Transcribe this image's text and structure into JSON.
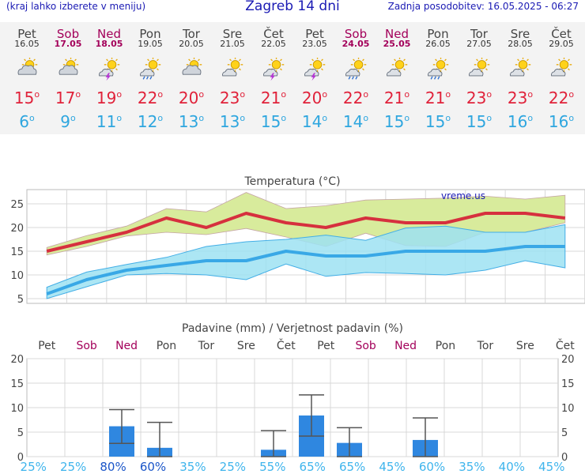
{
  "header": {
    "menu_hint": "(kraj lahko izberete v meniju)",
    "title": "Zagreb 14 dni",
    "updated": "Zadnja posodobitev: 16.05.2025 - 06:27"
  },
  "days": [
    {
      "name": "Pet",
      "date": "16.05",
      "weekend": false,
      "icon": "cloudy-sun-icon",
      "max": "15",
      "min": "6"
    },
    {
      "name": "Sob",
      "date": "17.05",
      "weekend": true,
      "icon": "cloudy-sun-icon",
      "max": "17",
      "min": "9"
    },
    {
      "name": "Ned",
      "date": "18.05",
      "weekend": true,
      "icon": "sun-cloud-storm-icon",
      "max": "19",
      "min": "11"
    },
    {
      "name": "Pon",
      "date": "19.05",
      "weekend": false,
      "icon": "sun-cloud-rain-icon",
      "max": "22",
      "min": "12"
    },
    {
      "name": "Tor",
      "date": "20.05",
      "weekend": false,
      "icon": "cloudy-sun-icon",
      "max": "20",
      "min": "13"
    },
    {
      "name": "Sre",
      "date": "21.05",
      "weekend": false,
      "icon": "sun-cloud-icon",
      "max": "23",
      "min": "13"
    },
    {
      "name": "Čet",
      "date": "22.05",
      "weekend": false,
      "icon": "sun-cloud-storm-icon",
      "max": "21",
      "min": "15"
    },
    {
      "name": "Pet",
      "date": "23.05",
      "weekend": false,
      "icon": "sun-cloud-storm-icon",
      "max": "20",
      "min": "14"
    },
    {
      "name": "Sob",
      "date": "24.05",
      "weekend": true,
      "icon": "sun-cloud-rain-icon",
      "max": "22",
      "min": "14"
    },
    {
      "name": "Ned",
      "date": "25.05",
      "weekend": true,
      "icon": "sun-cloud-icon",
      "max": "21",
      "min": "15"
    },
    {
      "name": "Pon",
      "date": "26.05",
      "weekend": false,
      "icon": "sun-cloud-rain-icon",
      "max": "21",
      "min": "15"
    },
    {
      "name": "Tor",
      "date": "27.05",
      "weekend": false,
      "icon": "sun-cloud-icon",
      "max": "23",
      "min": "15"
    },
    {
      "name": "Sre",
      "date": "28.05",
      "weekend": false,
      "icon": "sun-cloud-icon",
      "max": "23",
      "min": "16"
    },
    {
      "name": "Čet",
      "date": "29.05",
      "weekend": false,
      "icon": "sun-cloud-icon",
      "max": "22",
      "min": "16"
    }
  ],
  "colors": {
    "max_line": "#d6303e",
    "min_line": "#39a8e6",
    "max_band": "#d8eb9c",
    "min_band": "#9ee2f2",
    "overlap_band": "#8ed48a",
    "precip_bar": "#2f87e0",
    "weekend": "#a3005a"
  },
  "chart_data": [
    {
      "type": "line",
      "title": "Temperatura (°C)",
      "watermark": "vreme.us",
      "x": [
        "Pet",
        "Sob",
        "Ned",
        "Pon",
        "Tor",
        "Sre",
        "Čet",
        "Pet",
        "Sob",
        "Ned",
        "Pon",
        "Tor",
        "Sre",
        "Čet"
      ],
      "ylim": [
        4,
        28
      ],
      "yticks": [
        5,
        10,
        15,
        20,
        25
      ],
      "grid": true,
      "series": [
        {
          "values": [
            15,
            17,
            19,
            22,
            20,
            23,
            21,
            20,
            22,
            21,
            21,
            23,
            23,
            22
          ]
        },
        {
          "values": [
            6,
            9,
            11,
            12,
            13,
            13,
            15,
            14,
            14,
            15,
            15,
            15,
            16,
            16
          ]
        }
      ],
      "max_band_upper": [
        15.8,
        18.3,
        20.3,
        24.0,
        23.3,
        27.4,
        24.0,
        24.6,
        25.8,
        26.0,
        26.2,
        26.6,
        26.0,
        26.8
      ],
      "max_band_lower": [
        14.2,
        16.0,
        18.2,
        19.0,
        18.5,
        19.8,
        18.0,
        16.0,
        18.8,
        16.2,
        16.0,
        19.0,
        19.0,
        21.0
      ],
      "min_band_upper": [
        7.4,
        10.6,
        12.2,
        13.7,
        16.0,
        17.0,
        17.5,
        18.4,
        17.3,
        19.9,
        20.3,
        19.0,
        19.0,
        20.6
      ],
      "min_band_lower": [
        5.0,
        7.5,
        10.0,
        10.3,
        10.0,
        9.0,
        12.3,
        9.7,
        10.5,
        10.3,
        10.0,
        11.0,
        13.0,
        11.5
      ]
    },
    {
      "type": "bar",
      "title": "Padavine (mm) / Verjetnost padavin (%)",
      "categories": [
        "Pet",
        "Sob",
        "Ned",
        "Pon",
        "Tor",
        "Sre",
        "Čet",
        "Pet",
        "Sob",
        "Ned",
        "Pon",
        "Tor",
        "Sre",
        "Čet"
      ],
      "values": [
        0,
        0,
        6.2,
        1.8,
        0,
        0,
        1.4,
        8.4,
        2.8,
        0,
        3.4,
        0,
        0,
        0
      ],
      "err_high": [
        null,
        null,
        9.6,
        7.0,
        null,
        null,
        5.3,
        12.6,
        5.9,
        null,
        7.9,
        null,
        null,
        null
      ],
      "err_low": [
        null,
        null,
        2.7,
        0,
        null,
        null,
        0,
        4.2,
        0,
        null,
        0,
        null,
        null,
        null
      ],
      "probability": [
        "25%",
        "25%",
        "80%",
        "60%",
        "35%",
        "25%",
        "55%",
        "65%",
        "65%",
        "45%",
        "60%",
        "35%",
        "40%",
        "45%"
      ],
      "probability_highlight": [
        false,
        false,
        true,
        true,
        false,
        false,
        false,
        false,
        false,
        false,
        false,
        false,
        false,
        false
      ],
      "ylim": [
        0,
        20
      ],
      "yticks": [
        0,
        5,
        10,
        15,
        20
      ],
      "grid": true
    }
  ]
}
